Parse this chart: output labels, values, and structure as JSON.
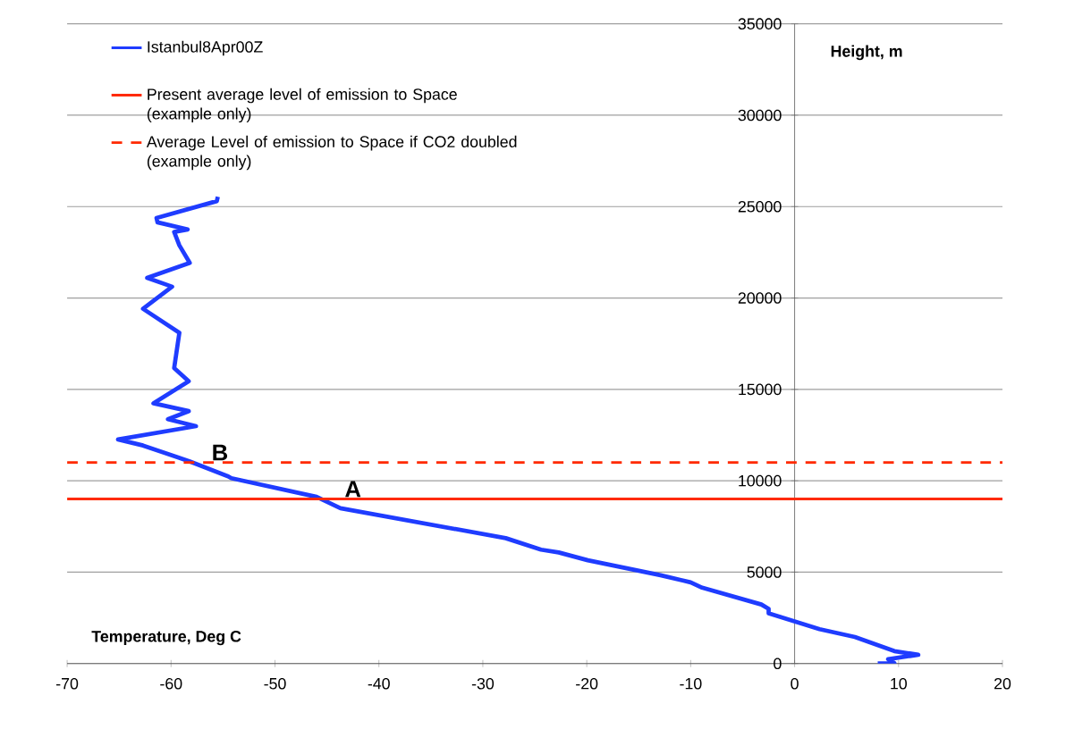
{
  "chart_data": {
    "type": "line",
    "xlabel": "Temperature, Deg C",
    "ylabel": "Height, m",
    "xlim": [
      -70,
      20
    ],
    "ylim": [
      0,
      35000
    ],
    "xticks": [
      -70,
      -60,
      -50,
      -40,
      -30,
      -20,
      -10,
      0,
      10,
      20
    ],
    "yticks": [
      0,
      5000,
      10000,
      15000,
      20000,
      25000,
      30000,
      35000
    ],
    "grid": "y",
    "legend": "top left",
    "line_style": "solid",
    "marker": "none",
    "series": [
      {
        "name": "Istanbul8Apr00Z",
        "color": "#1f3cff",
        "x": [
          8.0,
          9.6,
          9.0,
          11.9,
          9.6,
          5.8,
          2.4,
          -2.5,
          -2.5,
          -3.2,
          -8.9,
          -10.0,
          -12.9,
          -19.9,
          -22.7,
          -24.4,
          -27.8,
          -43.7,
          -44.6,
          -46.0,
          -54.2,
          -54.5,
          -58.2,
          -62.7,
          -65.1,
          -57.6,
          -60.3,
          -58.3,
          -61.7,
          -58.3,
          -59.7,
          -59.2,
          -62.7,
          -59.9,
          -62.3,
          -58.2,
          -59.2,
          -59.7,
          -58.4,
          -61.3,
          -61.4,
          -55.6,
          -55.5
        ],
        "values": [
          0,
          20,
          240,
          480,
          680,
          1450,
          1880,
          2750,
          2990,
          3230,
          4150,
          4440,
          4830,
          5650,
          6080,
          6230,
          6860,
          8500,
          8740,
          9120,
          10140,
          10240,
          11060,
          11930,
          12260,
          12990,
          13370,
          13810,
          14240,
          15450,
          16170,
          18100,
          19410,
          20620,
          21100,
          21920,
          22880,
          23610,
          23750,
          24140,
          24380,
          25300,
          25540
        ]
      }
    ],
    "ref_lines": [
      {
        "axis": "y",
        "value": 9000,
        "label": "Present average level of emission to Space (example only)",
        "color": "#ff2a00",
        "line_style": "solid"
      },
      {
        "axis": "y",
        "value": 11000,
        "label": "Average Level of emission to Space if CO2 doubled (example only)",
        "color": "#ff2a00",
        "line_style": "dashed"
      }
    ],
    "annotations": [
      {
        "text": "A",
        "x": -43.5,
        "y": 9000
      },
      {
        "text": "B",
        "x": -56.3,
        "y": 11000
      }
    ]
  }
}
